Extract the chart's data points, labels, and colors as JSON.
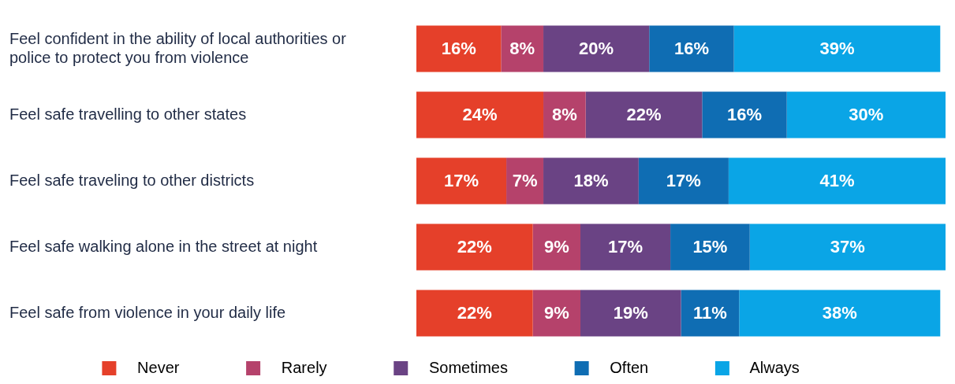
{
  "chart_data": {
    "type": "bar",
    "orientation": "horizontal",
    "stacked": true,
    "legend": "bottom",
    "categories": [
      "Feel confident in the ability of local authorities or police to protect you from violence",
      "Feel safe travelling to other states",
      "Feel safe traveling to other districts",
      "Feel safe walking alone in the street at night",
      "Feel safe from violence in your daily life"
    ],
    "series": [
      {
        "name": "Never",
        "color": "#e5402a",
        "values": [
          16,
          24,
          17,
          22,
          22
        ],
        "value_labels": [
          "16%",
          "24%",
          "17%",
          "22%",
          "22%"
        ]
      },
      {
        "name": "Rarely",
        "color": "#b5426b",
        "values": [
          8,
          8,
          7,
          9,
          9
        ],
        "value_labels": [
          "8%",
          "8%",
          "7%",
          "9%",
          "9%"
        ]
      },
      {
        "name": "Sometimes",
        "color": "#6a4384",
        "values": [
          20,
          22,
          18,
          17,
          19
        ],
        "value_labels": [
          "20%",
          "22%",
          "18%",
          "17%",
          "19%"
        ]
      },
      {
        "name": "Often",
        "color": "#0f6db3",
        "values": [
          16,
          16,
          17,
          15,
          11
        ],
        "value_labels": [
          "16%",
          "16%",
          "17%",
          "15%",
          "11%"
        ]
      },
      {
        "name": "Always",
        "color": "#0aa5e6",
        "values": [
          39,
          30,
          41,
          37,
          38
        ],
        "value_labels": [
          "39%",
          "30%",
          "41%",
          "37%",
          "38%"
        ]
      }
    ]
  }
}
